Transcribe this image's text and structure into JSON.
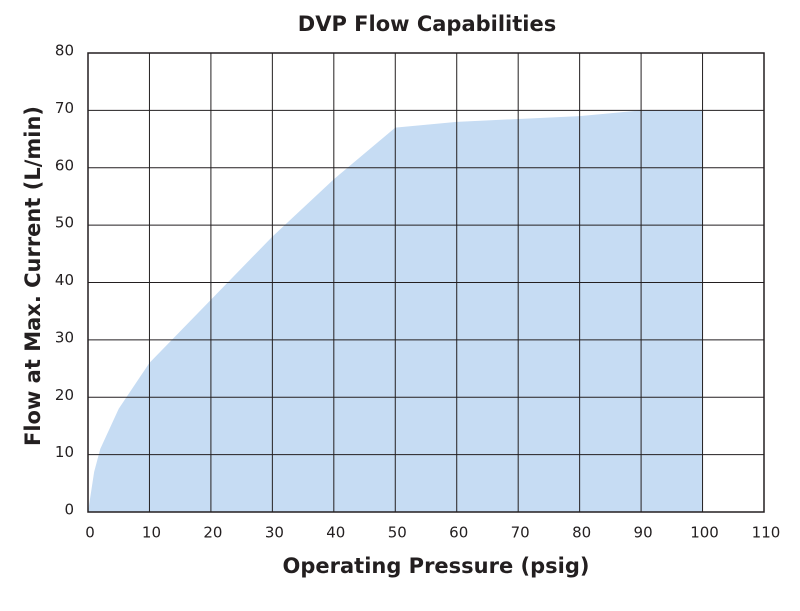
{
  "chart_data": {
    "type": "area",
    "title": "DVP Flow Capabilities",
    "x_label": "Operating Pressure (psig)",
    "y_label": "Flow at Max. Current (L/min)",
    "x": [
      0,
      1,
      2,
      5,
      10,
      20,
      30,
      40,
      50,
      60,
      70,
      80,
      90,
      100
    ],
    "values": [
      0,
      7,
      11,
      18,
      26,
      37,
      48,
      58,
      67,
      68,
      68.5,
      69,
      70,
      70
    ],
    "color": "#c6dcf3",
    "xlim": [
      0,
      110
    ],
    "xticks": [
      0,
      10,
      20,
      30,
      40,
      50,
      60,
      70,
      80,
      90,
      100,
      110
    ],
    "ylim": [
      0,
      80
    ],
    "yticks": [
      0,
      10,
      20,
      30,
      40,
      50,
      60,
      70,
      80
    ],
    "grid": true
  }
}
